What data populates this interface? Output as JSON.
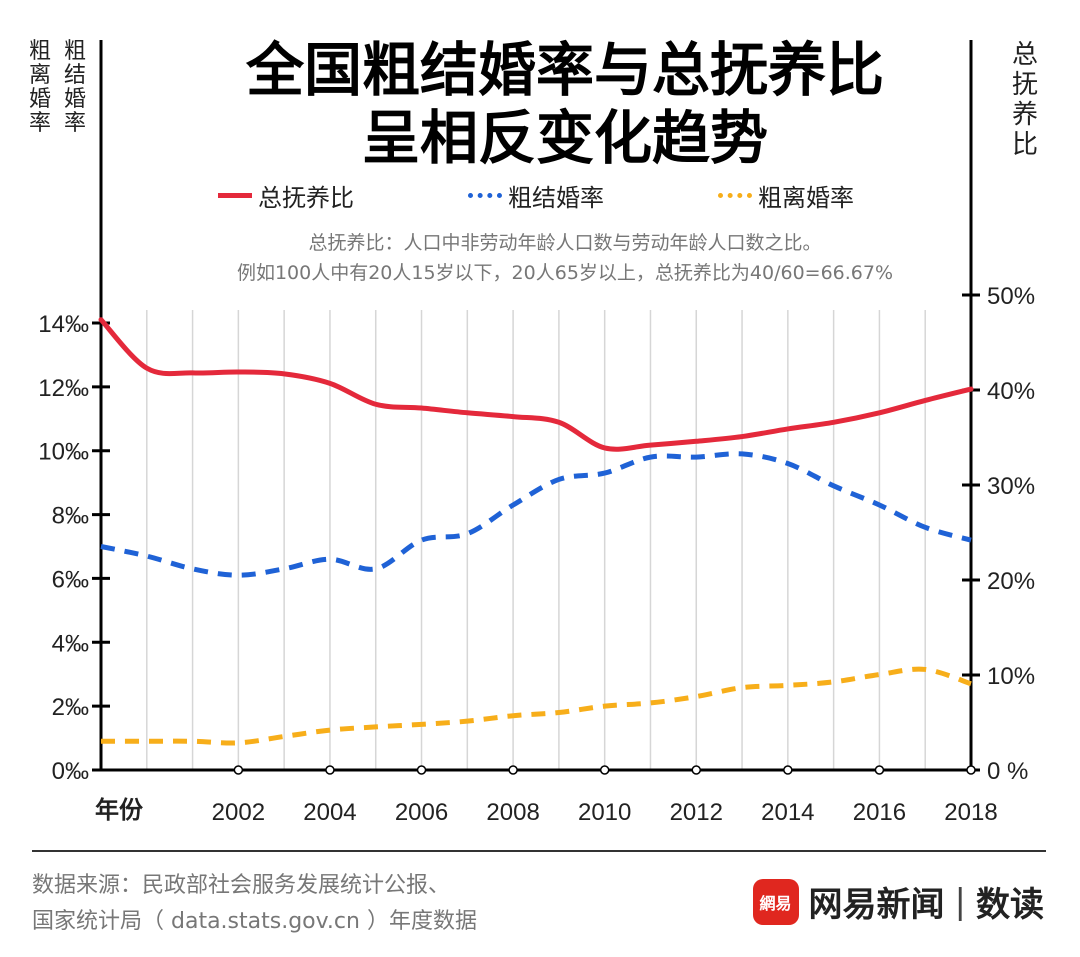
{
  "title_line1": "全国粗结婚率与总抚养比",
  "title_line2": "呈相反变化趋势",
  "left_axis_labels": [
    "粗离婚率",
    "粗结婚率"
  ],
  "right_axis_label": "总抚养比",
  "legend": [
    {
      "label": "总抚养比",
      "color": "#e4293b",
      "style": "solid"
    },
    {
      "label": "粗结婚率",
      "color": "#1f62d6",
      "style": "dashed"
    },
    {
      "label": "粗离婚率",
      "color": "#f7ae1a",
      "style": "dashed"
    }
  ],
  "note_line1": "总抚养比：人口中非劳动年龄人口数与劳动年龄人口数之比。",
  "note_line2": "例如100人中有20人15岁以下，20人65岁以上，总抚养比为40/60=66.67%",
  "footer_line1": "数据来源：民政部社会服务发展统计公报、",
  "footer_line2": "国家统计局（ data.stats.gov.cn ）年度数据",
  "brand": {
    "logo_text": "網易",
    "name": "网易新闻",
    "sub": "数读"
  },
  "chart_data": {
    "type": "line",
    "xlabel": "年份",
    "x": [
      1999,
      2000,
      2001,
      2002,
      2003,
      2004,
      2005,
      2006,
      2007,
      2008,
      2009,
      2010,
      2011,
      2012,
      2013,
      2014,
      2015,
      2016,
      2017,
      2018
    ],
    "x_tick_labels": [
      "2002",
      "2004",
      "2006",
      "2008",
      "2010",
      "2012",
      "2014",
      "2016",
      "2018"
    ],
    "y_left": {
      "label": "粗离婚率 粗结婚率",
      "range": [
        0,
        14
      ],
      "unit": "‰",
      "ticks": [
        "0‰",
        "2‰",
        "4‰",
        "6‰",
        "8‰",
        "10‰",
        "12‰",
        "14‰"
      ]
    },
    "y_right": {
      "label": "总抚养比",
      "range": [
        0,
        50
      ],
      "unit": "%",
      "ticks": [
        "0 %",
        "10%",
        "20%",
        "30%",
        "40%",
        "50%"
      ]
    },
    "grid": "vertical",
    "legend_position": "top",
    "series": [
      {
        "name": "总抚养比",
        "axis": "right",
        "color": "#e4293b",
        "style": "solid",
        "values": [
          47.4,
          42.3,
          41.8,
          41.9,
          41.7,
          40.7,
          38.5,
          38.1,
          37.6,
          37.2,
          36.6,
          33.9,
          34.2,
          34.6,
          35.1,
          35.9,
          36.6,
          37.6,
          38.9,
          40.1
        ]
      },
      {
        "name": "粗结婚率",
        "axis": "left",
        "color": "#1f62d6",
        "style": "dashed",
        "values": [
          7.0,
          6.7,
          6.3,
          6.1,
          6.3,
          6.6,
          6.3,
          7.2,
          7.4,
          8.3,
          9.1,
          9.3,
          9.8,
          9.8,
          9.9,
          9.6,
          8.9,
          8.3,
          7.6,
          7.2
        ]
      },
      {
        "name": "粗离婚率",
        "axis": "left",
        "color": "#f7ae1a",
        "style": "dashed",
        "values": [
          0.9,
          0.9,
          0.9,
          0.85,
          1.05,
          1.25,
          1.35,
          1.43,
          1.53,
          1.7,
          1.8,
          2.0,
          2.1,
          2.3,
          2.58,
          2.65,
          2.76,
          2.99,
          3.15,
          2.7
        ]
      }
    ]
  }
}
